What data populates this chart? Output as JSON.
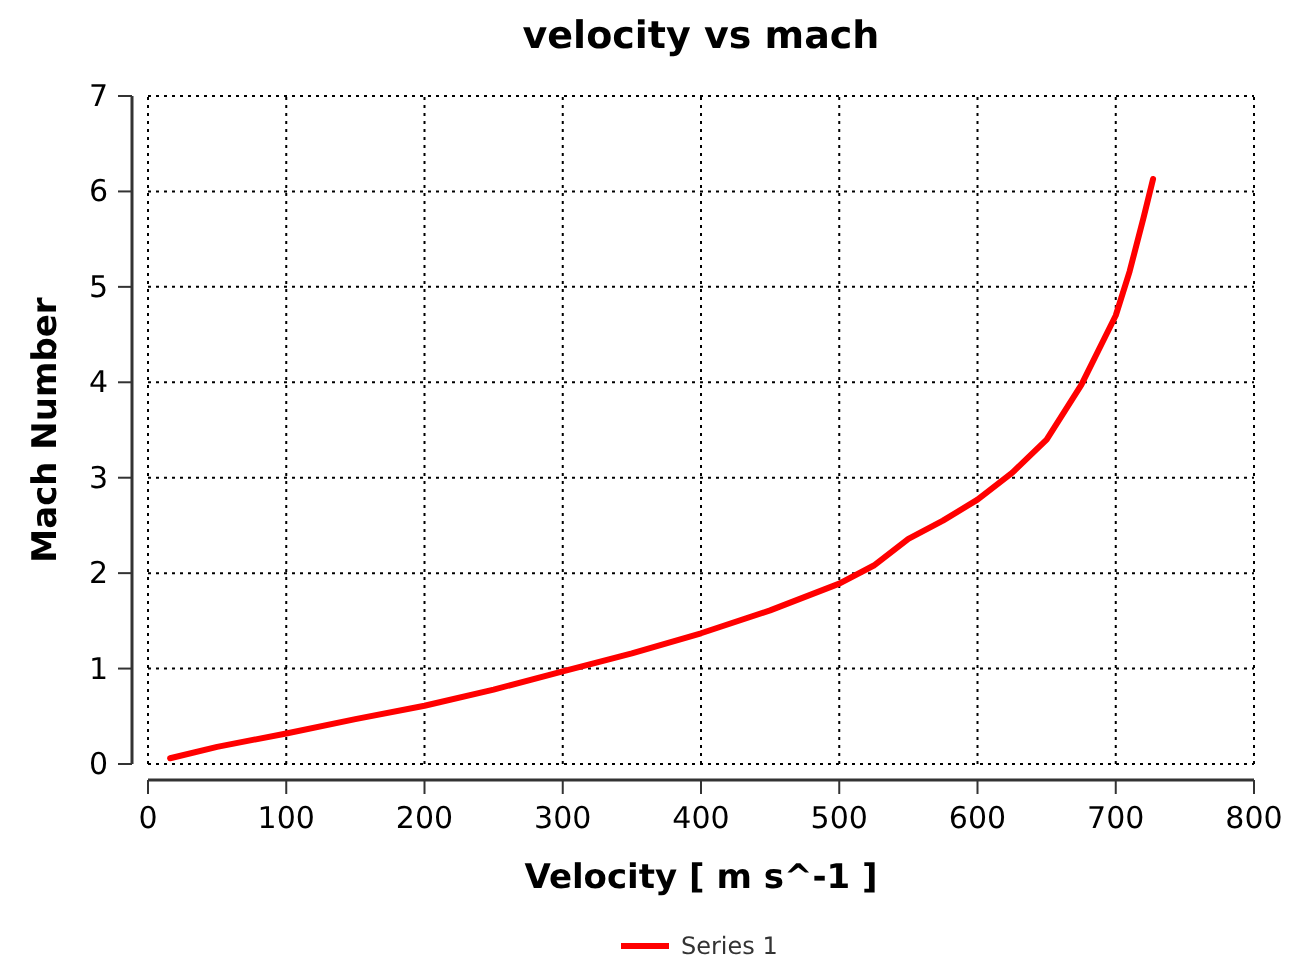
{
  "chart_data": {
    "type": "line",
    "title": "velocity vs mach",
    "xlabel": "Velocity [ m s^-1 ]",
    "ylabel": "Mach Number",
    "x": [
      16,
      50,
      100,
      150,
      200,
      250,
      300,
      350,
      400,
      450,
      500,
      525,
      550,
      575,
      600,
      625,
      650,
      675,
      700,
      710,
      720,
      727
    ],
    "series": [
      {
        "name": "Series 1",
        "color": "#ff0000",
        "values": [
          0.06,
          0.18,
          0.32,
          0.47,
          0.61,
          0.78,
          0.97,
          1.16,
          1.37,
          1.61,
          1.89,
          2.08,
          2.36,
          2.55,
          2.77,
          3.05,
          3.4,
          3.97,
          4.7,
          5.16,
          5.72,
          6.13
        ]
      }
    ],
    "xlim": [
      0,
      800
    ],
    "ylim": [
      0,
      7
    ],
    "xticks": [
      0,
      100,
      200,
      300,
      400,
      500,
      600,
      700,
      800
    ],
    "yticks": [
      0,
      1,
      2,
      3,
      4,
      5,
      6,
      7
    ],
    "grid": true,
    "legend": "bottom",
    "marker": "none",
    "line_style": "solid"
  }
}
